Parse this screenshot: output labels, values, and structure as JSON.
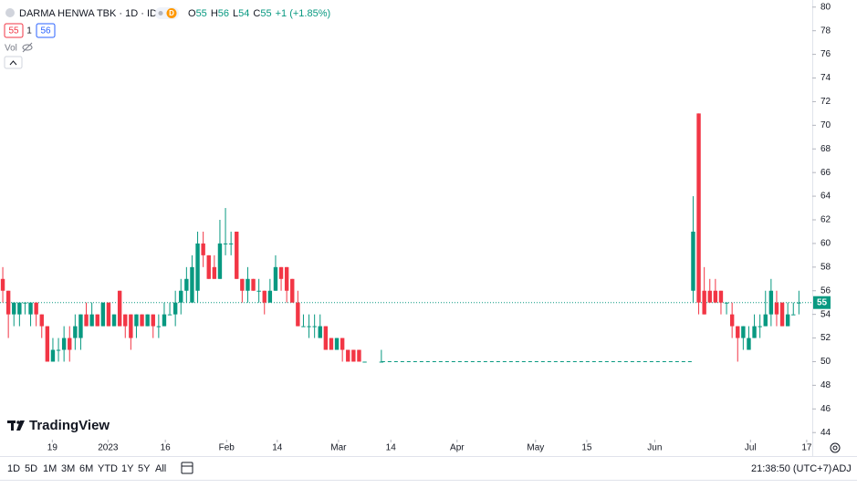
{
  "chart_data": {
    "type": "candlestick",
    "title": "DARMA HENWA TBK · 1D · IDX",
    "badge": "D",
    "ohlc_labels": [
      {
        "label": "O",
        "value": 55
      },
      {
        "label": "H",
        "value": 56
      },
      {
        "label": "L",
        "value": 54
      },
      {
        "label": "C",
        "value": 55
      }
    ],
    "change": "+1 (+1.85%)",
    "x": [
      0,
      1,
      2,
      3,
      4,
      5,
      6,
      7,
      8,
      9,
      10,
      11,
      12,
      13,
      14,
      15,
      16,
      17,
      18,
      19,
      20,
      21,
      22,
      23,
      24,
      25,
      26,
      27,
      28,
      29,
      30,
      31,
      32,
      33,
      34,
      35,
      36,
      37,
      38,
      39,
      40,
      41,
      42,
      43,
      44,
      45,
      46,
      47,
      48,
      49,
      50,
      51,
      52,
      53,
      54,
      55,
      56,
      57,
      58,
      59,
      60,
      61,
      62,
      63,
      64,
      65,
      68,
      124,
      125,
      126,
      127,
      128,
      129,
      130,
      131,
      132,
      133,
      134,
      135,
      136,
      137,
      138,
      139,
      140,
      141,
      142,
      143
    ],
    "open": [
      57,
      56,
      54,
      54,
      55,
      54,
      55,
      54,
      53,
      50,
      51,
      51,
      52,
      52,
      52,
      54,
      53,
      54,
      53,
      55,
      53,
      56,
      54,
      54,
      53,
      54,
      53,
      54,
      53,
      53,
      54,
      54,
      55,
      56,
      55,
      56,
      60,
      59,
      58,
      57,
      60,
      60,
      61,
      57,
      56,
      57,
      56,
      56,
      55,
      56,
      58,
      58,
      57,
      55,
      53,
      53,
      53,
      52,
      53,
      52,
      51,
      52,
      51,
      51,
      51,
      50,
      50,
      56,
      71,
      56,
      56,
      56,
      56,
      55,
      54,
      53,
      52,
      51,
      52,
      53,
      53,
      54,
      55,
      55,
      53,
      54,
      55
    ],
    "high": [
      58,
      56,
      55,
      55,
      55,
      55,
      55,
      54,
      53,
      52,
      52,
      53,
      53,
      54,
      54,
      55,
      55,
      54,
      55,
      55,
      54,
      56,
      54,
      54,
      54,
      54,
      54,
      54,
      54,
      55,
      55,
      56,
      57,
      58,
      59,
      61,
      61,
      59,
      59,
      62,
      63,
      61,
      61,
      57,
      58,
      57,
      57,
      56,
      57,
      59,
      58,
      58,
      57,
      56,
      54,
      54,
      54,
      54,
      53,
      52,
      52,
      52,
      51,
      51,
      51,
      50,
      51,
      64,
      71,
      58,
      57,
      57,
      56,
      55,
      55,
      53,
      53,
      53,
      54,
      54,
      56,
      57,
      56,
      55,
      55,
      55,
      56
    ],
    "low": [
      55,
      52,
      53,
      53,
      54,
      53,
      53,
      52,
      50,
      50,
      50,
      50,
      50,
      51,
      51,
      53,
      53,
      53,
      53,
      53,
      53,
      53,
      52,
      51,
      52,
      53,
      53,
      52,
      52,
      53,
      54,
      53,
      54,
      55,
      55,
      55,
      58,
      57,
      57,
      57,
      59,
      59,
      57,
      55,
      55,
      56,
      55,
      54,
      55,
      56,
      56,
      55,
      55,
      53,
      53,
      52,
      52,
      52,
      51,
      51,
      51,
      50,
      50,
      50,
      50,
      50,
      50,
      55,
      54,
      54,
      55,
      55,
      54,
      54,
      52,
      50,
      51,
      51,
      52,
      52,
      53,
      53,
      53,
      53,
      53,
      54,
      54
    ],
    "close": [
      56,
      54,
      55,
      55,
      55,
      55,
      54,
      53,
      50,
      51,
      51,
      52,
      51,
      53,
      54,
      53,
      54,
      53,
      55,
      53,
      54,
      53,
      53,
      52,
      54,
      53,
      54,
      53,
      53,
      54,
      54,
      55,
      56,
      57,
      58,
      60,
      59,
      57,
      57,
      60,
      60,
      60,
      57,
      56,
      57,
      56,
      56,
      55,
      56,
      58,
      57,
      56,
      55,
      53,
      53,
      53,
      53,
      53,
      51,
      51,
      52,
      51,
      50,
      50,
      50,
      50,
      50,
      61,
      55,
      54,
      55,
      55,
      55,
      55,
      53,
      52,
      53,
      52,
      53,
      53,
      54,
      56,
      54,
      53,
      54,
      54,
      55
    ],
    "up_color": "#089981",
    "down_color": "#f23645",
    "xlim": [
      -0.5,
      145.4
    ],
    "xticks": [
      {
        "value": 8.9,
        "label": "19"
      },
      {
        "value": 18.9,
        "label": "2023"
      },
      {
        "value": 29.2,
        "label": "16"
      },
      {
        "value": 40.2,
        "label": "Feb"
      },
      {
        "value": 49.3,
        "label": "14"
      },
      {
        "value": 60.3,
        "label": "Mar"
      },
      {
        "value": 69.7,
        "label": "14"
      },
      {
        "value": 81.6,
        "label": "Apr"
      },
      {
        "value": 95.7,
        "label": "May"
      },
      {
        "value": 104.9,
        "label": "15"
      },
      {
        "value": 117.1,
        "label": "Jun"
      },
      {
        "value": 134.3,
        "label": "Jul"
      },
      {
        "value": 144.4,
        "label": "17"
      }
    ],
    "ylim": [
      43.4,
      80.6
    ],
    "yticks": [
      44,
      46,
      48,
      50,
      52,
      54,
      56,
      58,
      60,
      62,
      64,
      66,
      68,
      70,
      72,
      74,
      76,
      78,
      80
    ],
    "grid": false
  },
  "ui": {
    "bid": 55,
    "spread": 1,
    "ask": 56,
    "volume_label": "Vol",
    "logo": "TradingView",
    "timeframes": [
      "1D",
      "5D",
      "1M",
      "3M",
      "6M",
      "YTD",
      "1Y",
      "5Y",
      "All"
    ],
    "clock": "21:38:50 (UTC+7)",
    "adjust": "ADJ"
  }
}
